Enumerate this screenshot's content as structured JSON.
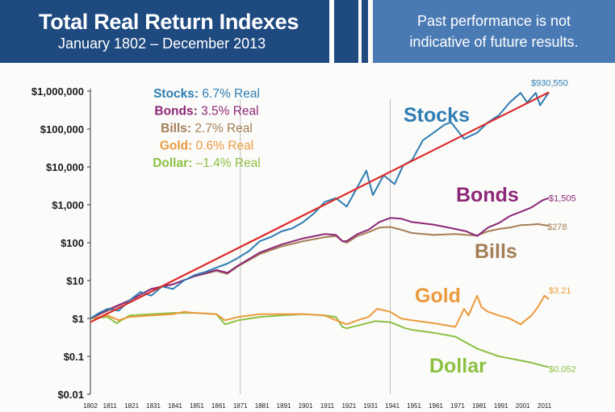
{
  "header": {
    "title": "Total Real Return Indexes",
    "subtitle": "January 1802 – December 2013",
    "note_line1": "Past performance is not",
    "note_line2": "indicative of future results."
  },
  "colors": {
    "header_dark": "#1e4a80",
    "header_light": "#4a7ab4",
    "stocks": "#2f7db3",
    "bonds": "#8c2777",
    "bills": "#a57d56",
    "gold": "#eb9a3e",
    "dollar": "#8cc043",
    "trend": "#d92b2b",
    "grid": "#bdbdbd"
  },
  "legend": [
    {
      "key": "stocks",
      "name": "Stocks:",
      "value": "6.7% Real"
    },
    {
      "key": "bonds",
      "name": "Bonds:",
      "value": "3.5% Real"
    },
    {
      "key": "bills",
      "name": "Bills:",
      "value": "2.7% Real"
    },
    {
      "key": "gold",
      "name": "Gold:",
      "value": "0.6% Real"
    },
    {
      "key": "dollar",
      "name": "Dollar:",
      "value": "–1.4% Real"
    }
  ],
  "chart_data": {
    "type": "line",
    "title": "Total Real Return Indexes",
    "subtitle": "January 1802 – December 2013",
    "xlabel": "",
    "ylabel": "",
    "y_scale": "log",
    "xlim": [
      1802,
      2013
    ],
    "ylim": [
      0.01,
      1000000
    ],
    "y_ticks": [
      0.01,
      0.1,
      1,
      10,
      100,
      1000,
      10000,
      100000,
      1000000
    ],
    "y_tick_labels": [
      "$0.01",
      "$0.1",
      "$1",
      "$10",
      "$100",
      "$1,000",
      "$10,000",
      "$100,000",
      "$1,000,000"
    ],
    "x_ticks": [
      1802,
      1811,
      1821,
      1831,
      1841,
      1851,
      1861,
      1871,
      1881,
      1891,
      1901,
      1911,
      1921,
      1931,
      1941,
      1951,
      1961,
      1971,
      1981,
      1991,
      2001,
      2011
    ],
    "vertical_lines": [
      1871,
      1940
    ],
    "series": [
      {
        "name": "Stocks",
        "key": "stocks",
        "end_label": "$930,550",
        "points": [
          [
            1802,
            1
          ],
          [
            1806,
            1.4
          ],
          [
            1810,
            1.8
          ],
          [
            1815,
            1.6
          ],
          [
            1820,
            3
          ],
          [
            1825,
            5
          ],
          [
            1830,
            4
          ],
          [
            1835,
            7
          ],
          [
            1840,
            6
          ],
          [
            1845,
            10
          ],
          [
            1850,
            14
          ],
          [
            1855,
            17
          ],
          [
            1860,
            22
          ],
          [
            1865,
            28
          ],
          [
            1870,
            40
          ],
          [
            1875,
            60
          ],
          [
            1880,
            110
          ],
          [
            1885,
            140
          ],
          [
            1890,
            200
          ],
          [
            1895,
            240
          ],
          [
            1900,
            350
          ],
          [
            1905,
            600
          ],
          [
            1910,
            1200
          ],
          [
            1915,
            1500
          ],
          [
            1920,
            900
          ],
          [
            1925,
            3000
          ],
          [
            1929,
            8000
          ],
          [
            1932,
            1800
          ],
          [
            1937,
            6000
          ],
          [
            1942,
            3500
          ],
          [
            1946,
            11000
          ],
          [
            1950,
            15000
          ],
          [
            1955,
            50000
          ],
          [
            1960,
            80000
          ],
          [
            1965,
            130000
          ],
          [
            1968,
            150000
          ],
          [
            1974,
            55000
          ],
          [
            1980,
            80000
          ],
          [
            1985,
            150000
          ],
          [
            1990,
            230000
          ],
          [
            1995,
            500000
          ],
          [
            2000,
            900000
          ],
          [
            2003,
            500000
          ],
          [
            2007,
            900000
          ],
          [
            2009,
            420000
          ],
          [
            2013,
            930550
          ]
        ]
      },
      {
        "name": "Bonds",
        "key": "bonds",
        "end_label": "$1,505",
        "points": [
          [
            1802,
            1
          ],
          [
            1810,
            1.7
          ],
          [
            1820,
            3
          ],
          [
            1830,
            6
          ],
          [
            1840,
            8
          ],
          [
            1850,
            13
          ],
          [
            1860,
            19
          ],
          [
            1865,
            16
          ],
          [
            1870,
            25
          ],
          [
            1880,
            55
          ],
          [
            1890,
            90
          ],
          [
            1900,
            130
          ],
          [
            1910,
            170
          ],
          [
            1915,
            160
          ],
          [
            1918,
            110
          ],
          [
            1920,
            110
          ],
          [
            1925,
            170
          ],
          [
            1930,
            220
          ],
          [
            1935,
            350
          ],
          [
            1940,
            450
          ],
          [
            1945,
            430
          ],
          [
            1950,
            350
          ],
          [
            1960,
            300
          ],
          [
            1970,
            230
          ],
          [
            1975,
            200
          ],
          [
            1980,
            150
          ],
          [
            1985,
            250
          ],
          [
            1990,
            330
          ],
          [
            1995,
            500
          ],
          [
            2000,
            650
          ],
          [
            2005,
            850
          ],
          [
            2010,
            1300
          ],
          [
            2013,
            1505
          ]
        ]
      },
      {
        "name": "Bills",
        "key": "bills",
        "end_label": "$278",
        "points": [
          [
            1802,
            1
          ],
          [
            1810,
            1.6
          ],
          [
            1820,
            3
          ],
          [
            1830,
            6
          ],
          [
            1840,
            8
          ],
          [
            1850,
            13
          ],
          [
            1860,
            18
          ],
          [
            1865,
            15
          ],
          [
            1870,
            24
          ],
          [
            1880,
            50
          ],
          [
            1890,
            80
          ],
          [
            1900,
            110
          ],
          [
            1910,
            140
          ],
          [
            1915,
            150
          ],
          [
            1918,
            110
          ],
          [
            1920,
            100
          ],
          [
            1925,
            150
          ],
          [
            1930,
            190
          ],
          [
            1935,
            250
          ],
          [
            1940,
            260
          ],
          [
            1945,
            220
          ],
          [
            1950,
            180
          ],
          [
            1960,
            160
          ],
          [
            1970,
            170
          ],
          [
            1975,
            160
          ],
          [
            1980,
            155
          ],
          [
            1985,
            200
          ],
          [
            1990,
            230
          ],
          [
            1995,
            250
          ],
          [
            2000,
            290
          ],
          [
            2005,
            300
          ],
          [
            2008,
            310
          ],
          [
            2013,
            278
          ]
        ]
      },
      {
        "name": "Gold",
        "key": "gold",
        "end_label": "$3.21",
        "points": [
          [
            1802,
            1
          ],
          [
            1810,
            1.2
          ],
          [
            1815,
            0.9
          ],
          [
            1820,
            1.1
          ],
          [
            1830,
            1.2
          ],
          [
            1840,
            1.3
          ],
          [
            1845,
            1.5
          ],
          [
            1850,
            1.4
          ],
          [
            1860,
            1.3
          ],
          [
            1864,
            0.9
          ],
          [
            1870,
            1.1
          ],
          [
            1880,
            1.3
          ],
          [
            1890,
            1.3
          ],
          [
            1900,
            1.3
          ],
          [
            1910,
            1.2
          ],
          [
            1915,
            0.9
          ],
          [
            1920,
            0.7
          ],
          [
            1925,
            0.9
          ],
          [
            1930,
            1.1
          ],
          [
            1934,
            1.8
          ],
          [
            1940,
            1.5
          ],
          [
            1945,
            1.0
          ],
          [
            1950,
            0.9
          ],
          [
            1960,
            0.75
          ],
          [
            1970,
            0.6
          ],
          [
            1974,
            1.8
          ],
          [
            1976,
            1.2
          ],
          [
            1980,
            4
          ],
          [
            1982,
            2
          ],
          [
            1985,
            1.5
          ],
          [
            1990,
            1.2
          ],
          [
            1995,
            1.0
          ],
          [
            2000,
            0.7
          ],
          [
            2005,
            1.2
          ],
          [
            2008,
            2
          ],
          [
            2011,
            4
          ],
          [
            2013,
            3.21
          ]
        ]
      },
      {
        "name": "Dollar",
        "key": "dollar",
        "end_label": "$0.052",
        "points": [
          [
            1802,
            1
          ],
          [
            1810,
            1.1
          ],
          [
            1814,
            0.75
          ],
          [
            1820,
            1.2
          ],
          [
            1830,
            1.3
          ],
          [
            1840,
            1.4
          ],
          [
            1850,
            1.4
          ],
          [
            1860,
            1.3
          ],
          [
            1864,
            0.7
          ],
          [
            1870,
            0.9
          ],
          [
            1880,
            1.1
          ],
          [
            1890,
            1.2
          ],
          [
            1900,
            1.3
          ],
          [
            1910,
            1.2
          ],
          [
            1915,
            1.1
          ],
          [
            1918,
            0.6
          ],
          [
            1920,
            0.55
          ],
          [
            1925,
            0.65
          ],
          [
            1933,
            0.85
          ],
          [
            1940,
            0.8
          ],
          [
            1947,
            0.55
          ],
          [
            1950,
            0.5
          ],
          [
            1960,
            0.42
          ],
          [
            1970,
            0.33
          ],
          [
            1975,
            0.23
          ],
          [
            1980,
            0.16
          ],
          [
            1990,
            0.1
          ],
          [
            2000,
            0.078
          ],
          [
            2005,
            0.068
          ],
          [
            2010,
            0.057
          ],
          [
            2013,
            0.052
          ]
        ]
      }
    ],
    "trend_line": {
      "from": [
        1802,
        0.8
      ],
      "to": [
        2013,
        930550
      ]
    },
    "series_labels": [
      {
        "key": "stocks",
        "text": "Stocks"
      },
      {
        "key": "bonds",
        "text": "Bonds"
      },
      {
        "key": "bills",
        "text": "Bills"
      },
      {
        "key": "gold",
        "text": "Gold"
      },
      {
        "key": "dollar",
        "text": "Dollar"
      }
    ]
  }
}
